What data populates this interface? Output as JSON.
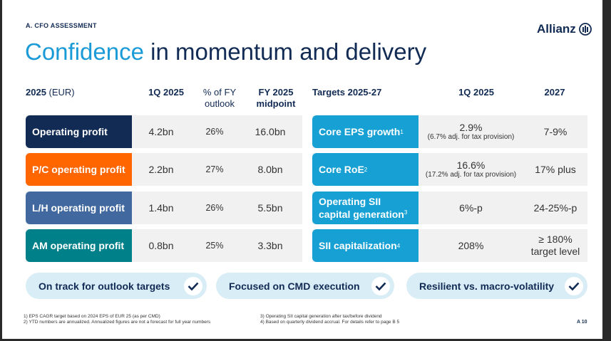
{
  "section_label": "A. CFO ASSESSMENT",
  "logo_text": "Allianz",
  "title": {
    "highlight": "Confidence",
    "rest": " in momentum and delivery"
  },
  "left_table": {
    "header": {
      "year": "2025",
      "unit": " (EUR)",
      "col1": "1Q 2025",
      "col2_line1": "% of FY",
      "col2_line2": "outlook",
      "col3_line1": "FY 2025",
      "col3_line2": "midpoint"
    },
    "rows": [
      {
        "label": "Operating profit",
        "q1": "4.2bn",
        "pct": "26%",
        "fy": "16.0bn",
        "color": "#122b54"
      },
      {
        "label": "P/C operating profit",
        "q1": "2.2bn",
        "pct": "27%",
        "fy": "8.0bn",
        "color": "#ff6600"
      },
      {
        "label": "L/H operating profit",
        "q1": "1.4bn",
        "pct": "26%",
        "fy": "5.5bn",
        "color": "#4169a0"
      },
      {
        "label": "AM operating profit",
        "q1": "0.8bn",
        "pct": "25%",
        "fy": "3.3bn",
        "color": "#008089"
      }
    ]
  },
  "right_table": {
    "header": {
      "title": "Targets 2025-27",
      "col1": "1Q 2025",
      "col2": "2027"
    },
    "rows": [
      {
        "label": "Core EPS growth",
        "sup": "1",
        "q1": "2.9%",
        "q1_note": "(6.7% adj. for tax provision)",
        "target": "7-9%"
      },
      {
        "label": "Core RoE",
        "sup": "2",
        "q1": "16.6%",
        "q1_note": "(17.2% adj. for tax provision)",
        "target": "17% plus"
      },
      {
        "label_line1": "Operating SII",
        "label_line2": "capital generation",
        "sup": "3",
        "q1": "6%-p",
        "target": "24-25%-p"
      },
      {
        "label": "SII capitalization",
        "sup": "4",
        "q1": "208%",
        "target_line1": "≥ 180%",
        "target_line2": "target level"
      }
    ],
    "color": "#16a0d4"
  },
  "pills": [
    {
      "label": "On track for outlook targets",
      "icon": "check-icon"
    },
    {
      "label": "Focused on CMD execution",
      "icon": "check-icon"
    },
    {
      "label": "Resilient vs. macro-volatility",
      "icon": "check-icon"
    }
  ],
  "footnotes": [
    "1)  EPS CAGR target based on 2024 EPS of EUR 25 (as per CMD)",
    "2)  YTD numbers are annualized. Annualized figures are not a forecast for full year numbers",
    "3)  Operating SII capital generation after tax/before dividend",
    "4)  Based on quarterly dividend accrual. For details refer to page B 5"
  ],
  "page_number": "A 10"
}
